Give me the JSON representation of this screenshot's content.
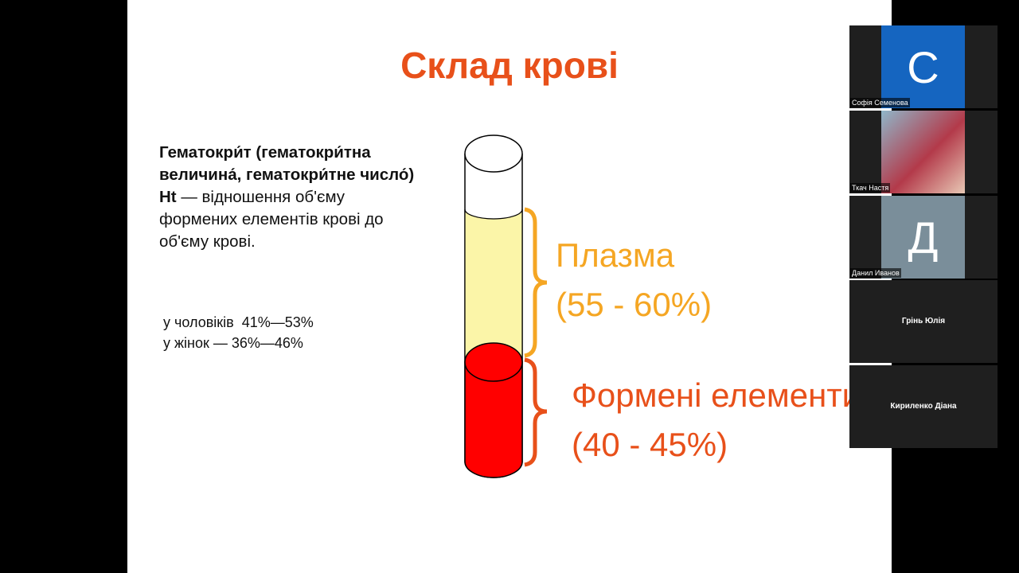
{
  "slide": {
    "title": "Склад крові",
    "definition": {
      "term": "Гематокри́т (гематокри́тна величина́, гематокри́тне число́) Ht",
      "text": "— відношення об'єму формених елементів крові до об'єму крові."
    },
    "ranges": [
      "у чоловіків  41%—53%",
      "у жінок — 36%—46%"
    ],
    "plasma": {
      "name": "Плазма",
      "range": "(55 - 60%)"
    },
    "elements": {
      "name": "Формені елементи",
      "range": "(40 - 45%)"
    }
  },
  "participants": [
    {
      "name": "Софія Семенова",
      "initial": "С"
    },
    {
      "name": "Ткач Настя"
    },
    {
      "name": "Данил Иванов",
      "initial": "Д"
    },
    {
      "name": "Грінь Юлія"
    },
    {
      "name": "Кириленко Діана"
    }
  ]
}
